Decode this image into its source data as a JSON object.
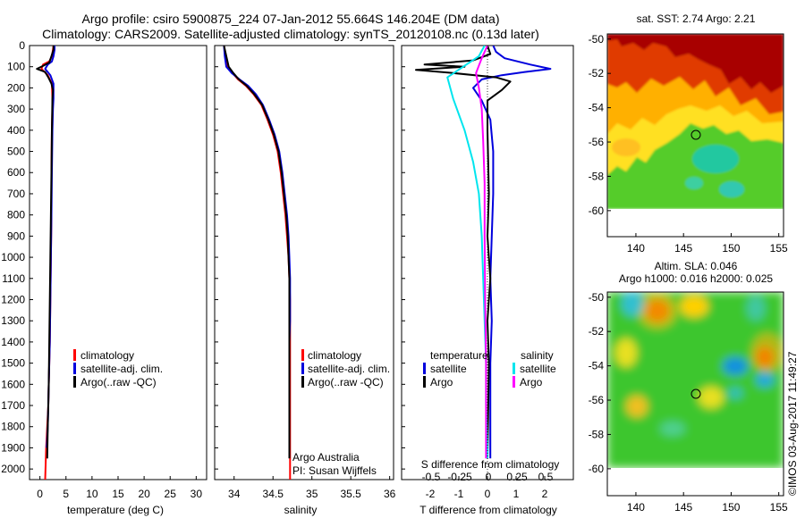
{
  "title": {
    "line1": "Argo profile: csiro 5900875_224 07-Jan-2012 55.664S 146.204E (DM data)",
    "line2": "Climatology: CARS2009. Satellite-adjusted climatology: synTS_20120108.nc (0.13d later)"
  },
  "colors": {
    "climatology": "#ff0000",
    "satellite": "#0000dd",
    "argo": "#000000",
    "sal_satellite": "#00e5ee",
    "sal_argo": "#ff00ff"
  },
  "depth_axis": {
    "range": [
      0,
      2050
    ],
    "ticks": [
      "0",
      "100",
      "200",
      "300",
      "400",
      "500",
      "600",
      "700",
      "800",
      "900",
      "1000",
      "1100",
      "1200",
      "1300",
      "1400",
      "1500",
      "1600",
      "1700",
      "1800",
      "1900",
      "2000"
    ]
  },
  "chart_data": [
    {
      "type": "line",
      "name": "temperature-panel",
      "xlabel": "temperature (deg C)",
      "xlim": [
        -2,
        32
      ],
      "ylim": [
        0,
        2050
      ],
      "xticks": [
        "0",
        "5",
        "10",
        "15",
        "20",
        "25",
        "30"
      ],
      "legend": [
        "climatology",
        "satellite-adj. clim.",
        "Argo(..raw -QC)"
      ],
      "series": [
        {
          "name": "climatology",
          "color_key": "climatology",
          "x": [
            2.6,
            2.5,
            2.3,
            1.8,
            0.6,
            0.3,
            1.5,
            2.3,
            2.4,
            2.4,
            2.3,
            2.2,
            2.2,
            2.1,
            2.0,
            1.9,
            1.8,
            1.7,
            1.6,
            1.4,
            1.2,
            1.0
          ],
          "y": [
            0,
            20,
            50,
            75,
            90,
            110,
            140,
            180,
            250,
            300,
            400,
            600,
            800,
            1000,
            1200,
            1400,
            1500,
            1600,
            1700,
            1800,
            1900,
            2050
          ]
        },
        {
          "name": "satellite-adj. clim.",
          "color_key": "satellite",
          "x": [
            2.8,
            2.8,
            2.6,
            2.3,
            1.5,
            1.0,
            2.0,
            2.6,
            2.6,
            2.5,
            2.4,
            2.3,
            2.2,
            2.1,
            2.0,
            1.9,
            1.8,
            1.7,
            1.6,
            1.5,
            1.3
          ],
          "y": [
            0,
            20,
            50,
            75,
            90,
            110,
            140,
            180,
            250,
            300,
            400,
            600,
            800,
            1000,
            1200,
            1400,
            1500,
            1600,
            1700,
            1800,
            1900
          ]
        },
        {
          "name": "Argo(..raw -QC)",
          "color_key": "argo",
          "x": [
            2.6,
            2.6,
            2.2,
            1.8,
            0.7,
            -0.6,
            1.0,
            1.6,
            2.2,
            2.5,
            2.4,
            2.3,
            2.2,
            2.1,
            2.0,
            1.9,
            1.8,
            1.7,
            1.6,
            1.5,
            1.4
          ],
          "y": [
            0,
            20,
            50,
            80,
            95,
            110,
            125,
            150,
            180,
            210,
            250,
            400,
            600,
            800,
            1000,
            1200,
            1400,
            1600,
            1700,
            1800,
            1950
          ]
        }
      ]
    },
    {
      "type": "line",
      "name": "salinity-panel",
      "xlabel": "salinity",
      "xlim": [
        33.75,
        36.05
      ],
      "ylim": [
        0,
        2050
      ],
      "xticks": [
        "34",
        "34.5",
        "35",
        "35.5",
        "36"
      ],
      "legend": [
        "climatology",
        "satellite-adj. clim.",
        "Argo(..raw -QC)"
      ],
      "footer": [
        "Argo Australia",
        "PI: Susan Wijffels"
      ],
      "series": [
        {
          "name": "climatology",
          "color_key": "climatology",
          "x": [
            33.87,
            33.89,
            33.92,
            33.98,
            34.05,
            34.15,
            34.25,
            34.35,
            34.43,
            34.5,
            34.56,
            34.6,
            34.63,
            34.66,
            34.68,
            34.7,
            34.71,
            34.72,
            34.72,
            34.72,
            34.72,
            34.72,
            34.72,
            34.72,
            34.72
          ],
          "y": [
            0,
            50,
            100,
            130,
            160,
            190,
            230,
            280,
            350,
            420,
            500,
            600,
            700,
            800,
            900,
            1000,
            1100,
            1200,
            1300,
            1400,
            1500,
            1600,
            1700,
            1800,
            2050
          ]
        },
        {
          "name": "satellite-adj. clim.",
          "color_key": "satellite",
          "x": [
            33.87,
            33.88,
            33.9,
            33.97,
            34.07,
            34.18,
            34.28,
            34.37,
            34.45,
            34.52,
            34.58,
            34.62,
            34.65,
            34.68,
            34.7,
            34.71,
            34.72,
            34.72,
            34.72,
            34.71,
            34.71,
            34.71,
            34.71,
            34.71
          ],
          "y": [
            0,
            50,
            100,
            130,
            160,
            190,
            230,
            280,
            350,
            420,
            500,
            600,
            700,
            800,
            900,
            1000,
            1100,
            1200,
            1300,
            1400,
            1500,
            1600,
            1700,
            1900
          ]
        },
        {
          "name": "Argo(..raw -QC)",
          "color_key": "argo",
          "x": [
            33.87,
            33.9,
            33.93,
            33.99,
            34.06,
            34.16,
            34.26,
            34.36,
            34.44,
            34.51,
            34.57,
            34.61,
            34.64,
            34.67,
            34.69,
            34.7,
            34.71,
            34.71,
            34.71,
            34.71,
            34.71,
            34.71,
            34.71,
            34.71
          ],
          "y": [
            0,
            50,
            100,
            130,
            160,
            190,
            230,
            280,
            350,
            420,
            500,
            600,
            700,
            800,
            900,
            1000,
            1100,
            1200,
            1300,
            1400,
            1500,
            1600,
            1700,
            1950
          ]
        }
      ]
    },
    {
      "type": "line",
      "name": "difference-panel",
      "xlabel": "T difference from climatology",
      "xlabel2": "S difference from climatology",
      "xlim": [
        -3,
        3
      ],
      "ylim": [
        0,
        2050
      ],
      "xticks": [
        "-2",
        "-1",
        "0",
        "1",
        "2"
      ],
      "xticks2": [
        "-0.5",
        "-0.25",
        "0",
        "0.25",
        "0.5"
      ],
      "legend_temp": {
        "title": "temperature",
        "items": [
          "satellite",
          "Argo"
        ]
      },
      "legend_sal": {
        "title": "salinity",
        "items": [
          "satellite",
          "Argo"
        ]
      },
      "series": [
        {
          "name": "T satellite",
          "color_key": "satellite",
          "x": [
            0.2,
            0.3,
            0.6,
            1.5,
            2.2,
            1.3,
            0.5,
            -0.2,
            -0.5,
            -0.2,
            0.1,
            0.2,
            0.2,
            0.15,
            0.1,
            0.15,
            0.1,
            0.1,
            0.1
          ],
          "y": [
            0,
            30,
            60,
            90,
            110,
            125,
            140,
            160,
            200,
            260,
            350,
            500,
            700,
            900,
            1100,
            1300,
            1500,
            1700,
            1950
          ]
        },
        {
          "name": "T Argo",
          "color_key": "argo",
          "x": [
            0.0,
            0.1,
            -0.5,
            -2.2,
            -0.8,
            -2.5,
            -1.2,
            0.3,
            0.8,
            0.5,
            0.0,
            0.0,
            0.05,
            0.0,
            0.05,
            0.1,
            0.0,
            0.05,
            0.0
          ],
          "y": [
            0,
            40,
            70,
            90,
            100,
            115,
            130,
            150,
            170,
            210,
            260,
            400,
            700,
            900,
            1000,
            1100,
            1300,
            1500,
            1950
          ]
        },
        {
          "name": "S satellite",
          "color_key": "sal_satellite",
          "x": [
            -0.1,
            -0.3,
            -1.4,
            -1.2,
            -0.8,
            -0.5,
            -0.3,
            -0.2,
            -0.15,
            -0.1,
            -0.05,
            -0.05,
            0.0,
            0.0
          ],
          "y": [
            0,
            50,
            150,
            250,
            400,
            550,
            700,
            900,
            1100,
            1300,
            1500,
            1700,
            1900,
            1950
          ]
        },
        {
          "name": "S Argo",
          "color_key": "sal_argo",
          "x": [
            0.0,
            -0.2,
            -0.4,
            -0.3,
            -0.2,
            -0.15,
            -0.1,
            -0.1,
            -0.08,
            -0.05,
            -0.05,
            -0.05
          ],
          "y": [
            0,
            60,
            130,
            200,
            300,
            450,
            650,
            900,
            1200,
            1500,
            1800,
            1950
          ]
        }
      ]
    },
    {
      "type": "heatmap",
      "name": "sst-map",
      "title": "sat. SST: 2.74  Argo: 2.21",
      "xlim": [
        137,
        155.5
      ],
      "ylim": [
        -61.1,
        -49.7
      ],
      "xticks": [
        "140",
        "145",
        "150",
        "155"
      ],
      "yticks": [
        "-50",
        "-52",
        "-54",
        "-56",
        "-58",
        "-60"
      ],
      "marker": {
        "lon": 146.2,
        "lat": -55.66
      }
    },
    {
      "type": "heatmap",
      "name": "sla-map",
      "title": "Altim. SLA: 0.046",
      "subtitle": "Argo h1000: 0.016  h2000: 0.025",
      "xlim": [
        137,
        155.5
      ],
      "ylim": [
        -61.1,
        -49.7
      ],
      "xticks": [
        "140",
        "145",
        "150",
        "155"
      ],
      "yticks": [
        "-50",
        "-52",
        "-54",
        "-56",
        "-58",
        "-60"
      ],
      "marker": {
        "lon": 146.2,
        "lat": -55.66
      }
    }
  ],
  "credit": "©IMOS 03-Aug-2017 11:49:27"
}
